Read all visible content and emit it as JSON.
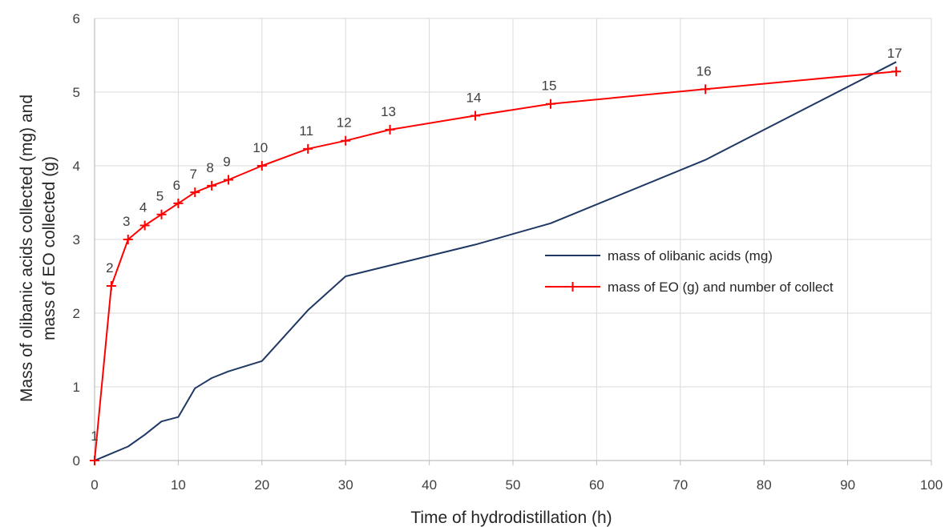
{
  "chart_data": {
    "type": "line",
    "title": "",
    "xlabel": "Time of hydrodistillation (h)",
    "ylabel_lines": [
      "Mass of olibanic acids collected (mg) and",
      "mass of EO collected (g)"
    ],
    "xlim": [
      0,
      100
    ],
    "ylim": [
      0,
      6
    ],
    "x_ticks": [
      0,
      10,
      20,
      30,
      40,
      50,
      60,
      70,
      80,
      90,
      100
    ],
    "y_ticks": [
      0,
      1,
      2,
      3,
      4,
      5,
      6
    ],
    "grid": true,
    "legend_position": "right",
    "series": [
      {
        "name": "mass of olibanic acids (mg)",
        "color": "#1f3864",
        "marker": "none",
        "x": [
          0,
          4,
          6,
          8,
          10,
          12,
          14,
          16,
          20,
          25.5,
          30,
          45.5,
          54.5,
          73,
          95.8
        ],
        "y": [
          0,
          0.19,
          0.35,
          0.53,
          0.59,
          0.98,
          1.12,
          1.21,
          1.35,
          2.04,
          2.5,
          2.93,
          3.22,
          4.08,
          5.41
        ]
      },
      {
        "name": "mass of EO (g) and number of collect",
        "color": "#ff0000",
        "marker": "plus",
        "x": [
          0,
          2,
          4,
          6,
          8,
          10,
          12,
          14,
          16,
          20,
          25.5,
          30,
          35.3,
          45.5,
          54.5,
          73,
          95.8
        ],
        "y": [
          0,
          2.37,
          3.0,
          3.19,
          3.34,
          3.49,
          3.64,
          3.73,
          3.81,
          4.0,
          4.23,
          4.34,
          4.49,
          4.68,
          4.84,
          5.04,
          5.28
        ],
        "point_labels": [
          "1",
          "2",
          "3",
          "4",
          "5",
          "6",
          "7",
          "8",
          "9",
          "10",
          "11",
          "12",
          "13",
          "14",
          "15",
          "16",
          "17"
        ]
      }
    ]
  }
}
